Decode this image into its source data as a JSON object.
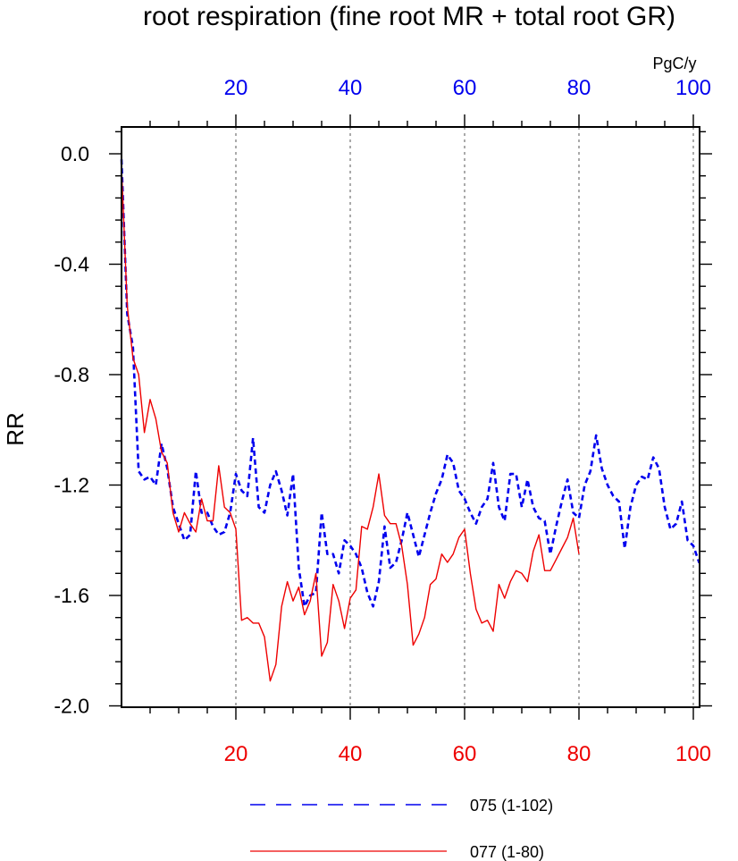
{
  "chart_data": {
    "type": "line",
    "title": "root respiration (fine root MR + total root GR)",
    "ylabel": "RR",
    "units_label": "PgC/y",
    "xlim": [
      0,
      102
    ],
    "ylim": [
      -2.0,
      0.1
    ],
    "grid": "vertical-dashed",
    "legend_position": "bottom",
    "x_ticks_top": [
      "20",
      "40",
      "60",
      "80",
      "100"
    ],
    "x_ticks_bottom": [
      "20",
      "40",
      "60",
      "80",
      "100"
    ],
    "y_ticks": [
      "0.0",
      "-0.4",
      "-0.8",
      "-1.2",
      "-1.6",
      "-2.0"
    ],
    "colors": {
      "series_blue": "#0000ee",
      "series_red": "#ee0000",
      "axis": "#000000"
    },
    "series": [
      {
        "name": "075 (1-102)",
        "color": "#0000ee",
        "style": "dashed",
        "axis": "top",
        "x_start": 0,
        "values": [
          -0.02,
          -0.58,
          -0.7,
          -1.15,
          -1.18,
          -1.17,
          -1.2,
          -1.05,
          -1.14,
          -1.28,
          -1.34,
          -1.4,
          -1.38,
          -1.15,
          -1.3,
          -1.3,
          -1.35,
          -1.38,
          -1.37,
          -1.3,
          -1.16,
          -1.22,
          -1.24,
          -1.03,
          -1.28,
          -1.3,
          -1.2,
          -1.15,
          -1.22,
          -1.31,
          -1.16,
          -1.5,
          -1.64,
          -1.6,
          -1.59,
          -1.3,
          -1.45,
          -1.45,
          -1.52,
          -1.4,
          -1.42,
          -1.45,
          -1.5,
          -1.59,
          -1.64,
          -1.55,
          -1.35,
          -1.5,
          -1.48,
          -1.4,
          -1.3,
          -1.38,
          -1.46,
          -1.38,
          -1.3,
          -1.23,
          -1.18,
          -1.09,
          -1.12,
          -1.22,
          -1.25,
          -1.3,
          -1.34,
          -1.28,
          -1.25,
          -1.12,
          -1.28,
          -1.33,
          -1.16,
          -1.16,
          -1.28,
          -1.18,
          -1.28,
          -1.32,
          -1.33,
          -1.45,
          -1.35,
          -1.26,
          -1.18,
          -1.3,
          -1.32,
          -1.2,
          -1.15,
          -1.02,
          -1.14,
          -1.2,
          -1.24,
          -1.26,
          -1.43,
          -1.28,
          -1.2,
          -1.17,
          -1.18,
          -1.1,
          -1.14,
          -1.28,
          -1.36,
          -1.34,
          -1.26,
          -1.4,
          -1.42,
          -1.48,
          -1.48
        ]
      },
      {
        "name": "077 (1-80)",
        "color": "#ee0000",
        "style": "solid",
        "axis": "bottom",
        "x_start": 0,
        "values": [
          -0.05,
          -0.55,
          -0.74,
          -0.8,
          -1.01,
          -0.89,
          -0.96,
          -1.08,
          -1.12,
          -1.3,
          -1.37,
          -1.3,
          -1.34,
          -1.37,
          -1.25,
          -1.33,
          -1.33,
          -1.13,
          -1.28,
          -1.3,
          -1.36,
          -1.69,
          -1.68,
          -1.7,
          -1.7,
          -1.75,
          -1.91,
          -1.85,
          -1.64,
          -1.55,
          -1.62,
          -1.57,
          -1.67,
          -1.62,
          -1.52,
          -1.82,
          -1.77,
          -1.56,
          -1.62,
          -1.72,
          -1.61,
          -1.58,
          -1.35,
          -1.36,
          -1.28,
          -1.16,
          -1.31,
          -1.34,
          -1.34,
          -1.42,
          -1.56,
          -1.78,
          -1.74,
          -1.68,
          -1.56,
          -1.54,
          -1.45,
          -1.48,
          -1.45,
          -1.39,
          -1.36,
          -1.52,
          -1.65,
          -1.7,
          -1.69,
          -1.73,
          -1.56,
          -1.61,
          -1.55,
          -1.51,
          -1.52,
          -1.55,
          -1.44,
          -1.38,
          -1.51,
          -1.51,
          -1.47,
          -1.43,
          -1.39,
          -1.32,
          -1.45
        ]
      }
    ]
  }
}
